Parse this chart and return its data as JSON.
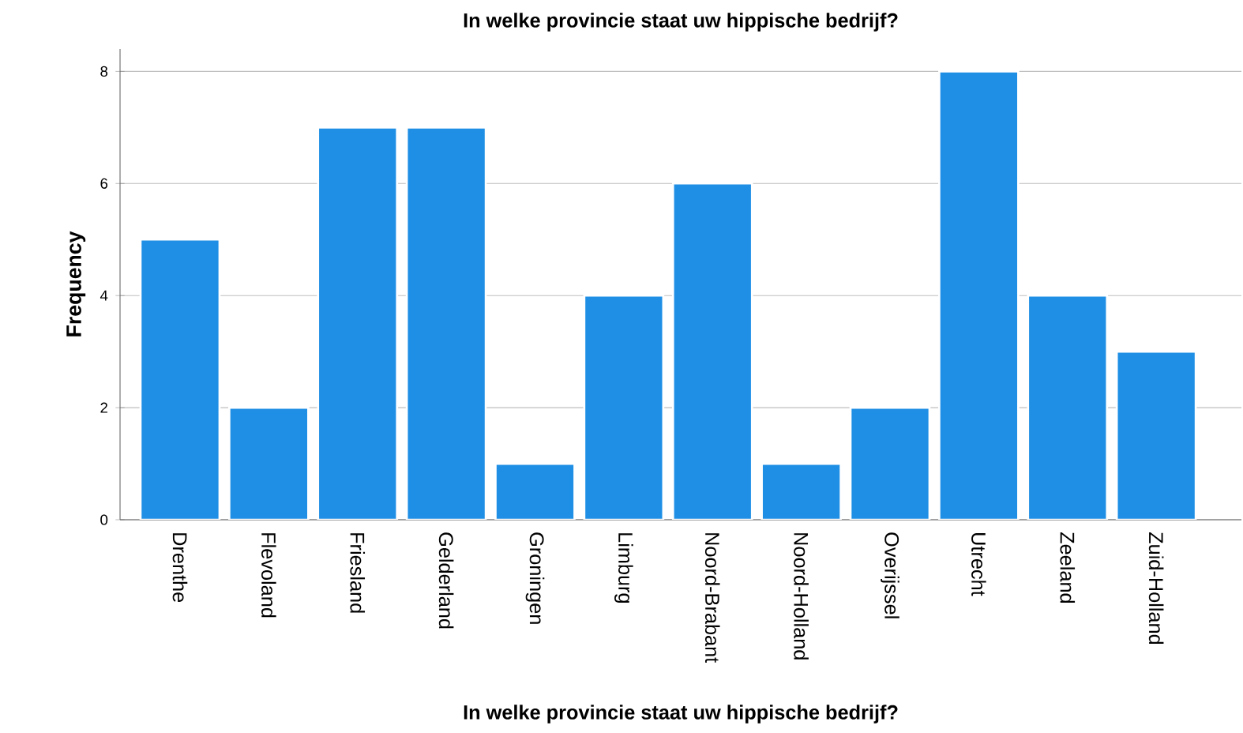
{
  "chart_data": {
    "type": "bar",
    "title": "In welke provincie staat uw hippische bedrijf?",
    "xlabel": "In welke provincie staat uw hippische bedrijf?",
    "ylabel": "Frequency",
    "categories": [
      "Drenthe",
      "Flevoland",
      "Friesland",
      "Gelderland",
      "Groningen",
      "Limburg",
      "Noord-Brabant",
      "Noord-Holland",
      "Overijssel",
      "Utrecht",
      "Zeeland",
      "Zuid-Holland"
    ],
    "values": [
      5,
      2,
      7,
      7,
      1,
      4,
      6,
      1,
      2,
      8,
      4,
      3
    ],
    "color": "#1f8fe5",
    "ylim": [
      0,
      8.4
    ],
    "yticks": [
      0,
      2,
      4,
      6,
      8
    ],
    "grid": "y"
  }
}
